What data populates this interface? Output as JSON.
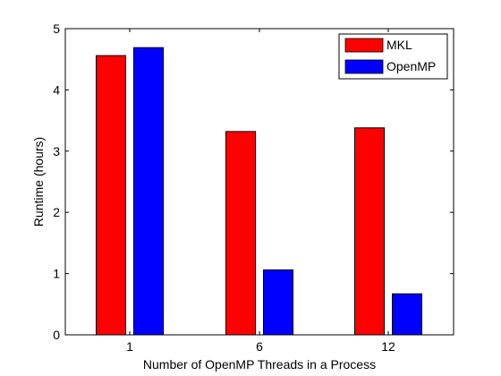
{
  "chart_data": {
    "type": "bar",
    "title": "",
    "xlabel": "Number of OpenMP Threads in a Process",
    "ylabel": "Runtime (hours)",
    "categories": [
      "1",
      "6",
      "12"
    ],
    "ylim": [
      0,
      5
    ],
    "yticks": [
      "0",
      "1",
      "2",
      "3",
      "4",
      "5"
    ],
    "grid": false,
    "legend_position": "top-right",
    "series": [
      {
        "name": "MKL",
        "color": "#ff0000",
        "values": [
          4.56,
          3.32,
          3.38
        ]
      },
      {
        "name": "OpenMP",
        "color": "#0000ff",
        "values": [
          4.69,
          1.06,
          0.67
        ]
      }
    ]
  }
}
